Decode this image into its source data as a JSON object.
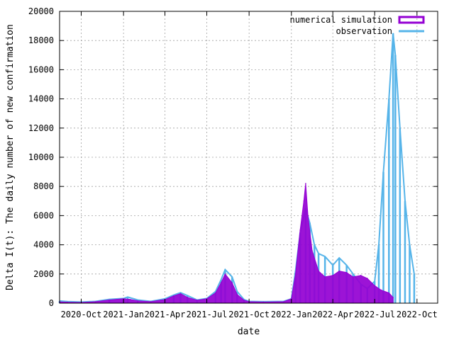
{
  "chart_data": {
    "type": "area",
    "xlabel": "date",
    "ylabel": "Delta I(t): The daily number of new confirmation",
    "ylim": [
      0,
      20000
    ],
    "xlim": [
      "2020-08-15",
      "2022-11-15"
    ],
    "yticks": [
      0,
      2000,
      4000,
      6000,
      8000,
      10000,
      12000,
      14000,
      16000,
      18000,
      20000
    ],
    "xticks": [
      {
        "date": "2020-10-01",
        "label": "2020-Oct"
      },
      {
        "date": "2021-01-01",
        "label": "2021-Jan"
      },
      {
        "date": "2021-04-01",
        "label": "2021-Apr"
      },
      {
        "date": "2021-07-01",
        "label": "2021-Jul"
      },
      {
        "date": "2021-10-01",
        "label": "2021-Oct"
      },
      {
        "date": "2022-01-01",
        "label": "2022-Jan"
      },
      {
        "date": "2022-04-01",
        "label": "2022-Apr"
      },
      {
        "date": "2022-07-01",
        "label": "2022-Jul"
      },
      {
        "date": "2022-10-01",
        "label": "2022-Oct"
      }
    ],
    "grid": true,
    "legend_position": "top-right",
    "series": [
      {
        "name": "observation",
        "color": "#56b4e9",
        "style": "impulses",
        "points": [
          [
            "2020-08-15",
            150
          ],
          [
            "2020-09-01",
            110
          ],
          [
            "2020-10-01",
            80
          ],
          [
            "2020-11-01",
            120
          ],
          [
            "2020-12-01",
            260
          ],
          [
            "2021-01-01",
            320
          ],
          [
            "2021-01-10",
            420
          ],
          [
            "2021-02-01",
            220
          ],
          [
            "2021-03-01",
            120
          ],
          [
            "2021-04-01",
            300
          ],
          [
            "2021-04-20",
            560
          ],
          [
            "2021-05-05",
            720
          ],
          [
            "2021-05-20",
            520
          ],
          [
            "2021-06-10",
            220
          ],
          [
            "2021-07-01",
            320
          ],
          [
            "2021-07-20",
            800
          ],
          [
            "2021-08-01",
            1600
          ],
          [
            "2021-08-10",
            2300
          ],
          [
            "2021-08-25",
            1800
          ],
          [
            "2021-09-05",
            800
          ],
          [
            "2021-09-20",
            250
          ],
          [
            "2021-10-01",
            120
          ],
          [
            "2021-11-01",
            100
          ],
          [
            "2021-12-15",
            120
          ],
          [
            "2022-01-01",
            300
          ],
          [
            "2022-01-10",
            2200
          ],
          [
            "2022-01-20",
            4800
          ],
          [
            "2022-02-01",
            6500
          ],
          [
            "2022-02-10",
            5500
          ],
          [
            "2022-02-20",
            4000
          ],
          [
            "2022-03-01",
            3400
          ],
          [
            "2022-03-15",
            3200
          ],
          [
            "2022-04-01",
            2600
          ],
          [
            "2022-04-15",
            3100
          ],
          [
            "2022-05-01",
            2600
          ],
          [
            "2022-05-15",
            2000
          ],
          [
            "2022-06-01",
            1300
          ],
          [
            "2022-06-15",
            1000
          ],
          [
            "2022-07-01",
            1500
          ],
          [
            "2022-07-10",
            4000
          ],
          [
            "2022-07-20",
            9000
          ],
          [
            "2022-08-01",
            14000
          ],
          [
            "2022-08-10",
            18500
          ],
          [
            "2022-08-15",
            17000
          ],
          [
            "2022-08-25",
            12000
          ],
          [
            "2022-09-05",
            7000
          ],
          [
            "2022-09-15",
            4000
          ],
          [
            "2022-09-25",
            2000
          ]
        ]
      },
      {
        "name": "numerical simulation",
        "color": "#9400d3",
        "style": "filledcurves",
        "points": [
          [
            "2020-08-15",
            90
          ],
          [
            "2020-09-01",
            70
          ],
          [
            "2020-10-01",
            50
          ],
          [
            "2020-11-01",
            100
          ],
          [
            "2020-12-01",
            220
          ],
          [
            "2021-01-01",
            300
          ],
          [
            "2021-01-15",
            260
          ],
          [
            "2021-02-01",
            160
          ],
          [
            "2021-03-01",
            100
          ],
          [
            "2021-04-01",
            250
          ],
          [
            "2021-04-20",
            500
          ],
          [
            "2021-05-05",
            650
          ],
          [
            "2021-05-20",
            400
          ],
          [
            "2021-06-10",
            200
          ],
          [
            "2021-07-01",
            300
          ],
          [
            "2021-07-20",
            700
          ],
          [
            "2021-08-01",
            1400
          ],
          [
            "2021-08-10",
            2000
          ],
          [
            "2021-08-25",
            1400
          ],
          [
            "2021-09-05",
            600
          ],
          [
            "2021-09-20",
            200
          ],
          [
            "2021-10-01",
            100
          ],
          [
            "2021-11-01",
            80
          ],
          [
            "2021-12-15",
            100
          ],
          [
            "2022-01-01",
            300
          ],
          [
            "2022-01-10",
            2000
          ],
          [
            "2022-01-20",
            5000
          ],
          [
            "2022-01-28",
            7000
          ],
          [
            "2022-02-01",
            8200
          ],
          [
            "2022-02-06",
            6000
          ],
          [
            "2022-02-15",
            3600
          ],
          [
            "2022-03-01",
            2200
          ],
          [
            "2022-03-15",
            1800
          ],
          [
            "2022-04-01",
            1900
          ],
          [
            "2022-04-15",
            2200
          ],
          [
            "2022-05-01",
            2100
          ],
          [
            "2022-05-15",
            1800
          ],
          [
            "2022-06-01",
            1900
          ],
          [
            "2022-06-15",
            1700
          ],
          [
            "2022-07-01",
            1200
          ],
          [
            "2022-07-15",
            900
          ],
          [
            "2022-08-01",
            700
          ],
          [
            "2022-08-10",
            400
          ]
        ]
      }
    ]
  }
}
